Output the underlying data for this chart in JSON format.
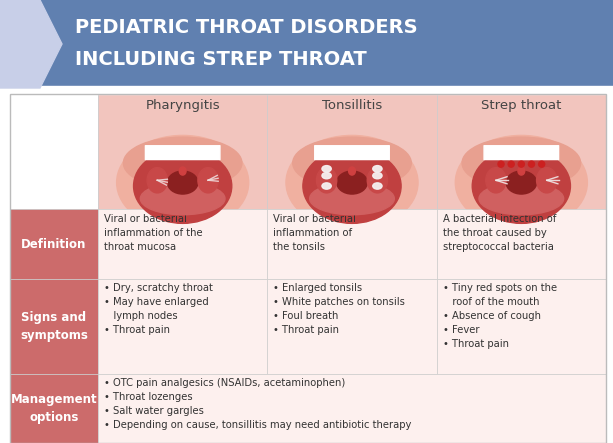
{
  "title_line1": "PEDIATRIC THROAT DISORDERS",
  "title_line2": "INCLUDING STREP THROAT",
  "header_bg": "#6080b0",
  "header_text_color": "#ffffff",
  "arrow_color": "#c8cfe8",
  "col_headers": [
    "Pharyngitis",
    "Tonsillitis",
    "Strep throat"
  ],
  "col_header_color": "#444444",
  "row_label_bg": "#cc6b6b",
  "row_label_text": "#ffffff",
  "image_bg": "#f2c5be",
  "grid_line_color": "#cccccc",
  "definition_texts": [
    "Viral or bacterial\ninflammation of the\nthroat mucosa",
    "Viral or bacterial\ninflammation of\nthe tonsils",
    "A bacterial infection of\nthe throat caused by\nstreptococcal bacteria"
  ],
  "signs_texts": [
    "• Dry, scratchy throat\n• May have enlarged\n   lymph nodes\n• Throat pain",
    "• Enlarged tonsils\n• White patches on tonsils\n• Foul breath\n• Throat pain",
    "• Tiny red spots on the\n   roof of the mouth\n• Absence of cough\n• Fever\n• Throat pain"
  ],
  "management_text": "• OTC pain analgesics (NSAIDs, acetaminophen)\n• Throat lozenges\n• Salt water gargles\n• Depending on cause, tonsillitis may need antibiotic therapy",
  "body_text_color": "#333333",
  "body_fontsize": 7.2,
  "label_fontsize": 8.5,
  "header_fontsize": 14,
  "col_header_fontsize": 9.5
}
